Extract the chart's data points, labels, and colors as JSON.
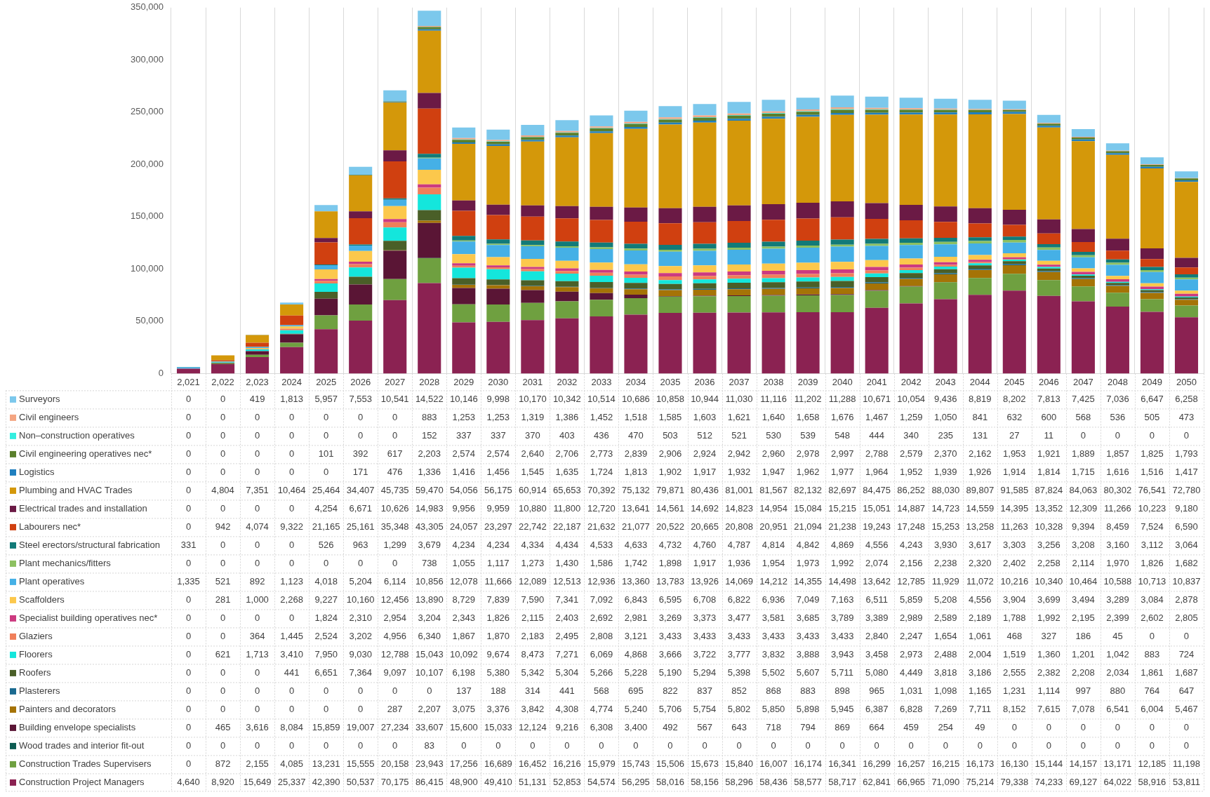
{
  "chart_data": {
    "type": "bar",
    "stacked": true,
    "grid": "x",
    "legend": "bottom",
    "categories": [
      "2,021",
      "2,022",
      "2,023",
      "2024",
      "2025",
      "2026",
      "2027",
      "2028",
      "2029",
      "2030",
      "2031",
      "2032",
      "2033",
      "2034",
      "2035",
      "2036",
      "2037",
      "2038",
      "2039",
      "2040",
      "2041",
      "2042",
      "2043",
      "2044",
      "2045",
      "2046",
      "2047",
      "2048",
      "2049",
      "2050"
    ],
    "ylim": [
      0,
      350000
    ],
    "yticks": [
      {
        "value": 0,
        "label": "0"
      },
      {
        "value": 50000,
        "label": "50,000"
      },
      {
        "value": 100000,
        "label": "100,000"
      },
      {
        "value": 150000,
        "label": "150,000"
      },
      {
        "value": 200000,
        "label": "200,000"
      },
      {
        "value": 250000,
        "label": "250,000"
      },
      {
        "value": 300000,
        "label": "300,000"
      },
      {
        "value": 350000,
        "label": "350,000"
      }
    ],
    "series": [
      {
        "name": "Construction Project Managers",
        "color": "#8b2252",
        "values": [
          4640,
          8920,
          15649,
          25337,
          42390,
          50537,
          70175,
          86415,
          48900,
          49410,
          51131,
          52853,
          54574,
          56295,
          58016,
          58156,
          58296,
          58436,
          58577,
          58717,
          62841,
          66965,
          71090,
          75214,
          79338,
          74233,
          69127,
          64022,
          58916,
          53811
        ],
        "value_labels": [
          "4,640",
          "8,920",
          "15,649",
          "25,337",
          "42,390",
          "50,537",
          "70,175",
          "86,415",
          "48,900",
          "49,410",
          "51,131",
          "52,853",
          "54,574",
          "56,295",
          "58,016",
          "58,156",
          "58,296",
          "58,436",
          "58,577",
          "58,717",
          "62,841",
          "66,965",
          "71,090",
          "75,214",
          "79,338",
          "74,233",
          "69,127",
          "64,022",
          "58,916",
          "53,811"
        ]
      },
      {
        "name": "Construction Trades Supervisers",
        "color": "#6fa040",
        "values": [
          0,
          872,
          2155,
          4085,
          13231,
          15555,
          20158,
          23943,
          17256,
          16689,
          16452,
          16216,
          15979,
          15743,
          15506,
          15673,
          15840,
          16007,
          16174,
          16341,
          16299,
          16257,
          16215,
          16173,
          16130,
          15144,
          14157,
          13171,
          12185,
          11198
        ],
        "value_labels": [
          "0",
          "872",
          "2,155",
          "4,085",
          "13,231",
          "15,555",
          "20,158",
          "23,943",
          "17,256",
          "16,689",
          "16,452",
          "16,216",
          "15,979",
          "15,743",
          "15,506",
          "15,673",
          "15,840",
          "16,007",
          "16,174",
          "16,341",
          "16,299",
          "16,257",
          "16,215",
          "16,173",
          "16,130",
          "15,144",
          "14,157",
          "13,171",
          "12,185",
          "11,198"
        ]
      },
      {
        "name": "Wood trades and interior fit-out",
        "color": "#0d5c52",
        "values": [
          0,
          0,
          0,
          0,
          0,
          0,
          0,
          83,
          0,
          0,
          0,
          0,
          0,
          0,
          0,
          0,
          0,
          0,
          0,
          0,
          0,
          0,
          0,
          0,
          0,
          0,
          0,
          0,
          0,
          0
        ],
        "value_labels": [
          "0",
          "0",
          "0",
          "0",
          "0",
          "0",
          "0",
          "83",
          "0",
          "0",
          "0",
          "0",
          "0",
          "0",
          "0",
          "0",
          "0",
          "0",
          "0",
          "0",
          "0",
          "0",
          "0",
          "0",
          "0",
          "0",
          "0",
          "0",
          "0",
          "0"
        ]
      },
      {
        "name": "Building envelope specialists",
        "color": "#5a1535",
        "values": [
          0,
          465,
          3616,
          8084,
          15859,
          19007,
          27234,
          33607,
          15600,
          15033,
          12124,
          9216,
          6308,
          3400,
          492,
          567,
          643,
          718,
          794,
          869,
          664,
          459,
          254,
          49,
          0,
          0,
          0,
          0,
          0,
          0
        ],
        "value_labels": [
          "0",
          "465",
          "3,616",
          "8,084",
          "15,859",
          "19,007",
          "27,234",
          "33,607",
          "15,600",
          "15,033",
          "12,124",
          "9,216",
          "6,308",
          "3,400",
          "492",
          "567",
          "643",
          "718",
          "794",
          "869",
          "664",
          "459",
          "254",
          "49",
          "0",
          "0",
          "0",
          "0",
          "0",
          "0"
        ]
      },
      {
        "name": "Painters and decorators",
        "color": "#a57306",
        "values": [
          0,
          0,
          0,
          0,
          0,
          0,
          287,
          2207,
          3075,
          3376,
          3842,
          4308,
          4774,
          5240,
          5706,
          5754,
          5802,
          5850,
          5898,
          5945,
          6387,
          6828,
          7269,
          7711,
          8152,
          7615,
          7078,
          6541,
          6004,
          5467
        ],
        "value_labels": [
          "0",
          "0",
          "0",
          "0",
          "0",
          "0",
          "287",
          "2,207",
          "3,075",
          "3,376",
          "3,842",
          "4,308",
          "4,774",
          "5,240",
          "5,706",
          "5,754",
          "5,802",
          "5,850",
          "5,898",
          "5,945",
          "6,387",
          "6,828",
          "7,269",
          "7,711",
          "8,152",
          "7,615",
          "7,078",
          "6,541",
          "6,004",
          "5,467"
        ]
      },
      {
        "name": "Plasterers",
        "color": "#1a6a90",
        "values": [
          0,
          0,
          0,
          0,
          0,
          0,
          0,
          0,
          137,
          188,
          314,
          441,
          568,
          695,
          822,
          837,
          852,
          868,
          883,
          898,
          965,
          1031,
          1098,
          1165,
          1231,
          1114,
          997,
          880,
          764,
          647
        ],
        "value_labels": [
          "0",
          "0",
          "0",
          "0",
          "0",
          "0",
          "0",
          "0",
          "137",
          "188",
          "314",
          "441",
          "568",
          "695",
          "822",
          "837",
          "852",
          "868",
          "883",
          "898",
          "965",
          "1,031",
          "1,098",
          "1,165",
          "1,231",
          "1,114",
          "997",
          "880",
          "764",
          "647"
        ]
      },
      {
        "name": "Roofers",
        "color": "#4a5f28",
        "values": [
          0,
          0,
          0,
          441,
          6651,
          7364,
          9097,
          10107,
          6198,
          5380,
          5342,
          5304,
          5266,
          5228,
          5190,
          5294,
          5398,
          5502,
          5607,
          5711,
          5080,
          4449,
          3818,
          3186,
          2555,
          2382,
          2208,
          2034,
          1861,
          1687
        ],
        "value_labels": [
          "0",
          "0",
          "0",
          "441",
          "6,651",
          "7,364",
          "9,097",
          "10,107",
          "6,198",
          "5,380",
          "5,342",
          "5,304",
          "5,266",
          "5,228",
          "5,190",
          "5,294",
          "5,398",
          "5,502",
          "5,607",
          "5,711",
          "5,080",
          "4,449",
          "3,818",
          "3,186",
          "2,555",
          "2,382",
          "2,208",
          "2,034",
          "1,861",
          "1,687"
        ]
      },
      {
        "name": "Floorers",
        "color": "#14e6dc",
        "values": [
          0,
          621,
          1713,
          3410,
          7950,
          9030,
          12788,
          15043,
          10092,
          9674,
          8473,
          7271,
          6069,
          4868,
          3666,
          3722,
          3777,
          3832,
          3888,
          3943,
          3458,
          2973,
          2488,
          2004,
          1519,
          1360,
          1201,
          1042,
          883,
          724
        ],
        "value_labels": [
          "0",
          "621",
          "1,713",
          "3,410",
          "7,950",
          "9,030",
          "12,788",
          "15,043",
          "10,092",
          "9,674",
          "8,473",
          "7,271",
          "6,069",
          "4,868",
          "3,666",
          "3,722",
          "3,777",
          "3,832",
          "3,888",
          "3,943",
          "3,458",
          "2,973",
          "2,488",
          "2,004",
          "1,519",
          "1,360",
          "1,201",
          "1,042",
          "883",
          "724"
        ]
      },
      {
        "name": "Glaziers",
        "color": "#f07f5a",
        "values": [
          0,
          0,
          364,
          1445,
          2524,
          3202,
          4956,
          6340,
          1867,
          1870,
          2183,
          2495,
          2808,
          3121,
          3433,
          3433,
          3433,
          3433,
          3433,
          3433,
          2840,
          2247,
          1654,
          1061,
          468,
          327,
          186,
          45,
          0,
          0
        ],
        "value_labels": [
          "0",
          "0",
          "364",
          "1,445",
          "2,524",
          "3,202",
          "4,956",
          "6,340",
          "1,867",
          "1,870",
          "2,183",
          "2,495",
          "2,808",
          "3,121",
          "3,433",
          "3,433",
          "3,433",
          "3,433",
          "3,433",
          "3,433",
          "2,840",
          "2,247",
          "1,654",
          "1,061",
          "468",
          "327",
          "186",
          "45",
          "0",
          "0"
        ]
      },
      {
        "name": "Specialist building operatives nec*",
        "color": "#cc3a80",
        "values": [
          0,
          0,
          0,
          0,
          1824,
          2310,
          2954,
          3204,
          2343,
          1826,
          2115,
          2403,
          2692,
          2981,
          3269,
          3373,
          3477,
          3581,
          3685,
          3789,
          3389,
          2989,
          2589,
          2189,
          1788,
          1992,
          2195,
          2399,
          2602,
          2805
        ],
        "value_labels": [
          "0",
          "0",
          "0",
          "0",
          "1,824",
          "2,310",
          "2,954",
          "3,204",
          "2,343",
          "1,826",
          "2,115",
          "2,403",
          "2,692",
          "2,981",
          "3,269",
          "3,373",
          "3,477",
          "3,581",
          "3,685",
          "3,789",
          "3,389",
          "2,989",
          "2,589",
          "2,189",
          "1,788",
          "1,992",
          "2,195",
          "2,399",
          "2,602",
          "2,805"
        ]
      },
      {
        "name": "Scaffolders",
        "color": "#fcc84c",
        "values": [
          0,
          281,
          1000,
          2268,
          9227,
          10160,
          12456,
          13890,
          8729,
          7839,
          7590,
          7341,
          7092,
          6843,
          6595,
          6708,
          6822,
          6936,
          7049,
          7163,
          6511,
          5859,
          5208,
          4556,
          3904,
          3699,
          3494,
          3289,
          3084,
          2878
        ],
        "value_labels": [
          "0",
          "281",
          "1,000",
          "2,268",
          "9,227",
          "10,160",
          "12,456",
          "13,890",
          "8,729",
          "7,839",
          "7,590",
          "7,341",
          "7,092",
          "6,843",
          "6,595",
          "6,708",
          "6,822",
          "6,936",
          "7,049",
          "7,163",
          "6,511",
          "5,859",
          "5,208",
          "4,556",
          "3,904",
          "3,699",
          "3,494",
          "3,289",
          "3,084",
          "2,878"
        ]
      },
      {
        "name": "Plant operatives",
        "color": "#45b0e6",
        "values": [
          1335,
          521,
          892,
          1123,
          4018,
          5204,
          6114,
          10856,
          12078,
          11666,
          12089,
          12513,
          12936,
          13360,
          13783,
          13926,
          14069,
          14212,
          14355,
          14498,
          13642,
          12785,
          11929,
          11072,
          10216,
          10340,
          10464,
          10588,
          10713,
          10837
        ],
        "value_labels": [
          "1,335",
          "521",
          "892",
          "1,123",
          "4,018",
          "5,204",
          "6,114",
          "10,856",
          "12,078",
          "11,666",
          "12,089",
          "12,513",
          "12,936",
          "13,360",
          "13,783",
          "13,926",
          "14,069",
          "14,212",
          "14,355",
          "14,498",
          "13,642",
          "12,785",
          "11,929",
          "11,072",
          "10,216",
          "10,340",
          "10,464",
          "10,588",
          "10,713",
          "10,837"
        ]
      },
      {
        "name": "Plant mechanics/fitters",
        "color": "#8cc060",
        "values": [
          0,
          0,
          0,
          0,
          0,
          0,
          0,
          738,
          1055,
          1117,
          1273,
          1430,
          1586,
          1742,
          1898,
          1917,
          1936,
          1954,
          1973,
          1992,
          2074,
          2156,
          2238,
          2320,
          2402,
          2258,
          2114,
          1970,
          1826,
          1682
        ],
        "value_labels": [
          "0",
          "0",
          "0",
          "0",
          "0",
          "0",
          "0",
          "738",
          "1,055",
          "1,117",
          "1,273",
          "1,430",
          "1,586",
          "1,742",
          "1,898",
          "1,917",
          "1,936",
          "1,954",
          "1,973",
          "1,992",
          "2,074",
          "2,156",
          "2,238",
          "2,320",
          "2,402",
          "2,258",
          "2,114",
          "1,970",
          "1,826",
          "1,682"
        ]
      },
      {
        "name": "Steel erectors/structural fabrication",
        "color": "#127a78",
        "values": [
          331,
          0,
          0,
          0,
          526,
          963,
          1299,
          3679,
          4234,
          4234,
          4334,
          4434,
          4533,
          4633,
          4732,
          4760,
          4787,
          4814,
          4842,
          4869,
          4556,
          4243,
          3930,
          3617,
          3303,
          3256,
          3208,
          3160,
          3112,
          3064
        ],
        "value_labels": [
          "331",
          "0",
          "0",
          "0",
          "526",
          "963",
          "1,299",
          "3,679",
          "4,234",
          "4,234",
          "4,334",
          "4,434",
          "4,533",
          "4,633",
          "4,732",
          "4,760",
          "4,787",
          "4,814",
          "4,842",
          "4,869",
          "4,556",
          "4,243",
          "3,930",
          "3,617",
          "3,303",
          "3,256",
          "3,208",
          "3,160",
          "3,112",
          "3,064"
        ]
      },
      {
        "name": "Labourers nec*",
        "color": "#d04010",
        "values": [
          0,
          942,
          4074,
          9322,
          21165,
          25161,
          35348,
          43305,
          24057,
          23297,
          22742,
          22187,
          21632,
          21077,
          20522,
          20665,
          20808,
          20951,
          21094,
          21238,
          19243,
          17248,
          15253,
          13258,
          11263,
          10328,
          9394,
          8459,
          7524,
          6590
        ],
        "value_labels": [
          "0",
          "942",
          "4,074",
          "9,322",
          "21,165",
          "25,161",
          "35,348",
          "43,305",
          "24,057",
          "23,297",
          "22,742",
          "22,187",
          "21,632",
          "21,077",
          "20,522",
          "20,665",
          "20,808",
          "20,951",
          "21,094",
          "21,238",
          "19,243",
          "17,248",
          "15,253",
          "13,258",
          "11,263",
          "10,328",
          "9,394",
          "8,459",
          "7,524",
          "6,590"
        ]
      },
      {
        "name": "Electrical trades and installation",
        "color": "#6b1a45",
        "values": [
          0,
          0,
          0,
          0,
          4254,
          6671,
          10626,
          14983,
          9956,
          9959,
          10880,
          11800,
          12720,
          13641,
          14561,
          14692,
          14823,
          14954,
          15084,
          15215,
          15051,
          14887,
          14723,
          14559,
          14395,
          13352,
          12309,
          11266,
          10223,
          9180
        ],
        "value_labels": [
          "0",
          "0",
          "0",
          "0",
          "4,254",
          "6,671",
          "10,626",
          "14,983",
          "9,956",
          "9,959",
          "10,880",
          "11,800",
          "12,720",
          "13,641",
          "14,561",
          "14,692",
          "14,823",
          "14,954",
          "15,084",
          "15,215",
          "15,051",
          "14,887",
          "14,723",
          "14,559",
          "14,395",
          "13,352",
          "12,309",
          "11,266",
          "10,223",
          "9,180"
        ]
      },
      {
        "name": "Plumbing and HVAC Trades",
        "color": "#d4980a",
        "values": [
          0,
          4804,
          7351,
          10464,
          25464,
          34407,
          45735,
          59470,
          54056,
          56175,
          60914,
          65653,
          70392,
          75132,
          79871,
          80436,
          81001,
          81567,
          82132,
          82697,
          84475,
          86252,
          88030,
          89807,
          91585,
          87824,
          84063,
          80302,
          76541,
          72780
        ],
        "value_labels": [
          "0",
          "4,804",
          "7,351",
          "10,464",
          "25,464",
          "34,407",
          "45,735",
          "59,470",
          "54,056",
          "56,175",
          "60,914",
          "65,653",
          "70,392",
          "75,132",
          "79,871",
          "80,436",
          "81,001",
          "81,567",
          "82,132",
          "82,697",
          "84,475",
          "86,252",
          "88,030",
          "89,807",
          "91,585",
          "87,824",
          "84,063",
          "80,302",
          "76,541",
          "72,780"
        ]
      },
      {
        "name": "Logistics",
        "color": "#1f7fbf",
        "values": [
          0,
          0,
          0,
          0,
          0,
          171,
          476,
          1336,
          1416,
          1456,
          1545,
          1635,
          1724,
          1813,
          1902,
          1917,
          1932,
          1947,
          1962,
          1977,
          1964,
          1952,
          1939,
          1926,
          1914,
          1814,
          1715,
          1616,
          1516,
          1417
        ],
        "value_labels": [
          "0",
          "0",
          "0",
          "0",
          "0",
          "171",
          "476",
          "1,336",
          "1,416",
          "1,456",
          "1,545",
          "1,635",
          "1,724",
          "1,813",
          "1,902",
          "1,917",
          "1,932",
          "1,947",
          "1,962",
          "1,977",
          "1,964",
          "1,952",
          "1,939",
          "1,926",
          "1,914",
          "1,814",
          "1,715",
          "1,616",
          "1,516",
          "1,417"
        ]
      },
      {
        "name": "Civil engineering operatives nec*",
        "color": "#5a7f2c",
        "values": [
          0,
          0,
          0,
          0,
          101,
          392,
          617,
          2203,
          2574,
          2574,
          2640,
          2706,
          2773,
          2839,
          2906,
          2924,
          2942,
          2960,
          2978,
          2997,
          2788,
          2579,
          2370,
          2162,
          1953,
          1921,
          1889,
          1857,
          1825,
          1793
        ],
        "value_labels": [
          "0",
          "0",
          "0",
          "0",
          "101",
          "392",
          "617",
          "2,203",
          "2,574",
          "2,574",
          "2,640",
          "2,706",
          "2,773",
          "2,839",
          "2,906",
          "2,924",
          "2,942",
          "2,960",
          "2,978",
          "2,997",
          "2,788",
          "2,579",
          "2,370",
          "2,162",
          "1,953",
          "1,921",
          "1,889",
          "1,857",
          "1,825",
          "1,793"
        ]
      },
      {
        "name": "Non‒construction operatives",
        "color": "#33eee0",
        "values": [
          0,
          0,
          0,
          0,
          0,
          0,
          0,
          152,
          337,
          337,
          370,
          403,
          436,
          470,
          503,
          512,
          521,
          530,
          539,
          548,
          444,
          340,
          235,
          131,
          27,
          11,
          0,
          0,
          0,
          0
        ],
        "value_labels": [
          "0",
          "0",
          "0",
          "0",
          "0",
          "0",
          "0",
          "152",
          "337",
          "337",
          "370",
          "403",
          "436",
          "470",
          "503",
          "512",
          "521",
          "530",
          "539",
          "548",
          "444",
          "340",
          "235",
          "131",
          "27",
          "11",
          "0",
          "0",
          "0",
          "0"
        ]
      },
      {
        "name": "Civil engineers",
        "color": "#f4a582",
        "values": [
          0,
          0,
          0,
          0,
          0,
          0,
          0,
          883,
          1253,
          1253,
          1319,
          1386,
          1452,
          1518,
          1585,
          1603,
          1621,
          1640,
          1658,
          1676,
          1467,
          1259,
          1050,
          841,
          632,
          600,
          568,
          536,
          505,
          473
        ],
        "value_labels": [
          "0",
          "0",
          "0",
          "0",
          "0",
          "0",
          "0",
          "883",
          "1,253",
          "1,253",
          "1,319",
          "1,386",
          "1,452",
          "1,518",
          "1,585",
          "1,603",
          "1,621",
          "1,640",
          "1,658",
          "1,676",
          "1,467",
          "1,259",
          "1,050",
          "841",
          "632",
          "600",
          "568",
          "536",
          "505",
          "473"
        ]
      },
      {
        "name": "Surveyors",
        "color": "#7cc8ec",
        "values": [
          0,
          0,
          419,
          1813,
          5957,
          7553,
          10541,
          14522,
          10146,
          9998,
          10170,
          10342,
          10514,
          10686,
          10858,
          10944,
          11030,
          11116,
          11202,
          11288,
          10671,
          10054,
          9436,
          8819,
          8202,
          7813,
          7425,
          7036,
          6647,
          6258
        ],
        "value_labels": [
          "0",
          "0",
          "419",
          "1,813",
          "5,957",
          "7,553",
          "10,541",
          "14,522",
          "10,146",
          "9,998",
          "10,170",
          "10,342",
          "10,514",
          "10,686",
          "10,858",
          "10,944",
          "11,030",
          "11,116",
          "11,202",
          "11,288",
          "10,671",
          "10,054",
          "9,436",
          "8,819",
          "8,202",
          "7,813",
          "7,425",
          "7,036",
          "6,647",
          "6,258"
        ]
      }
    ]
  }
}
